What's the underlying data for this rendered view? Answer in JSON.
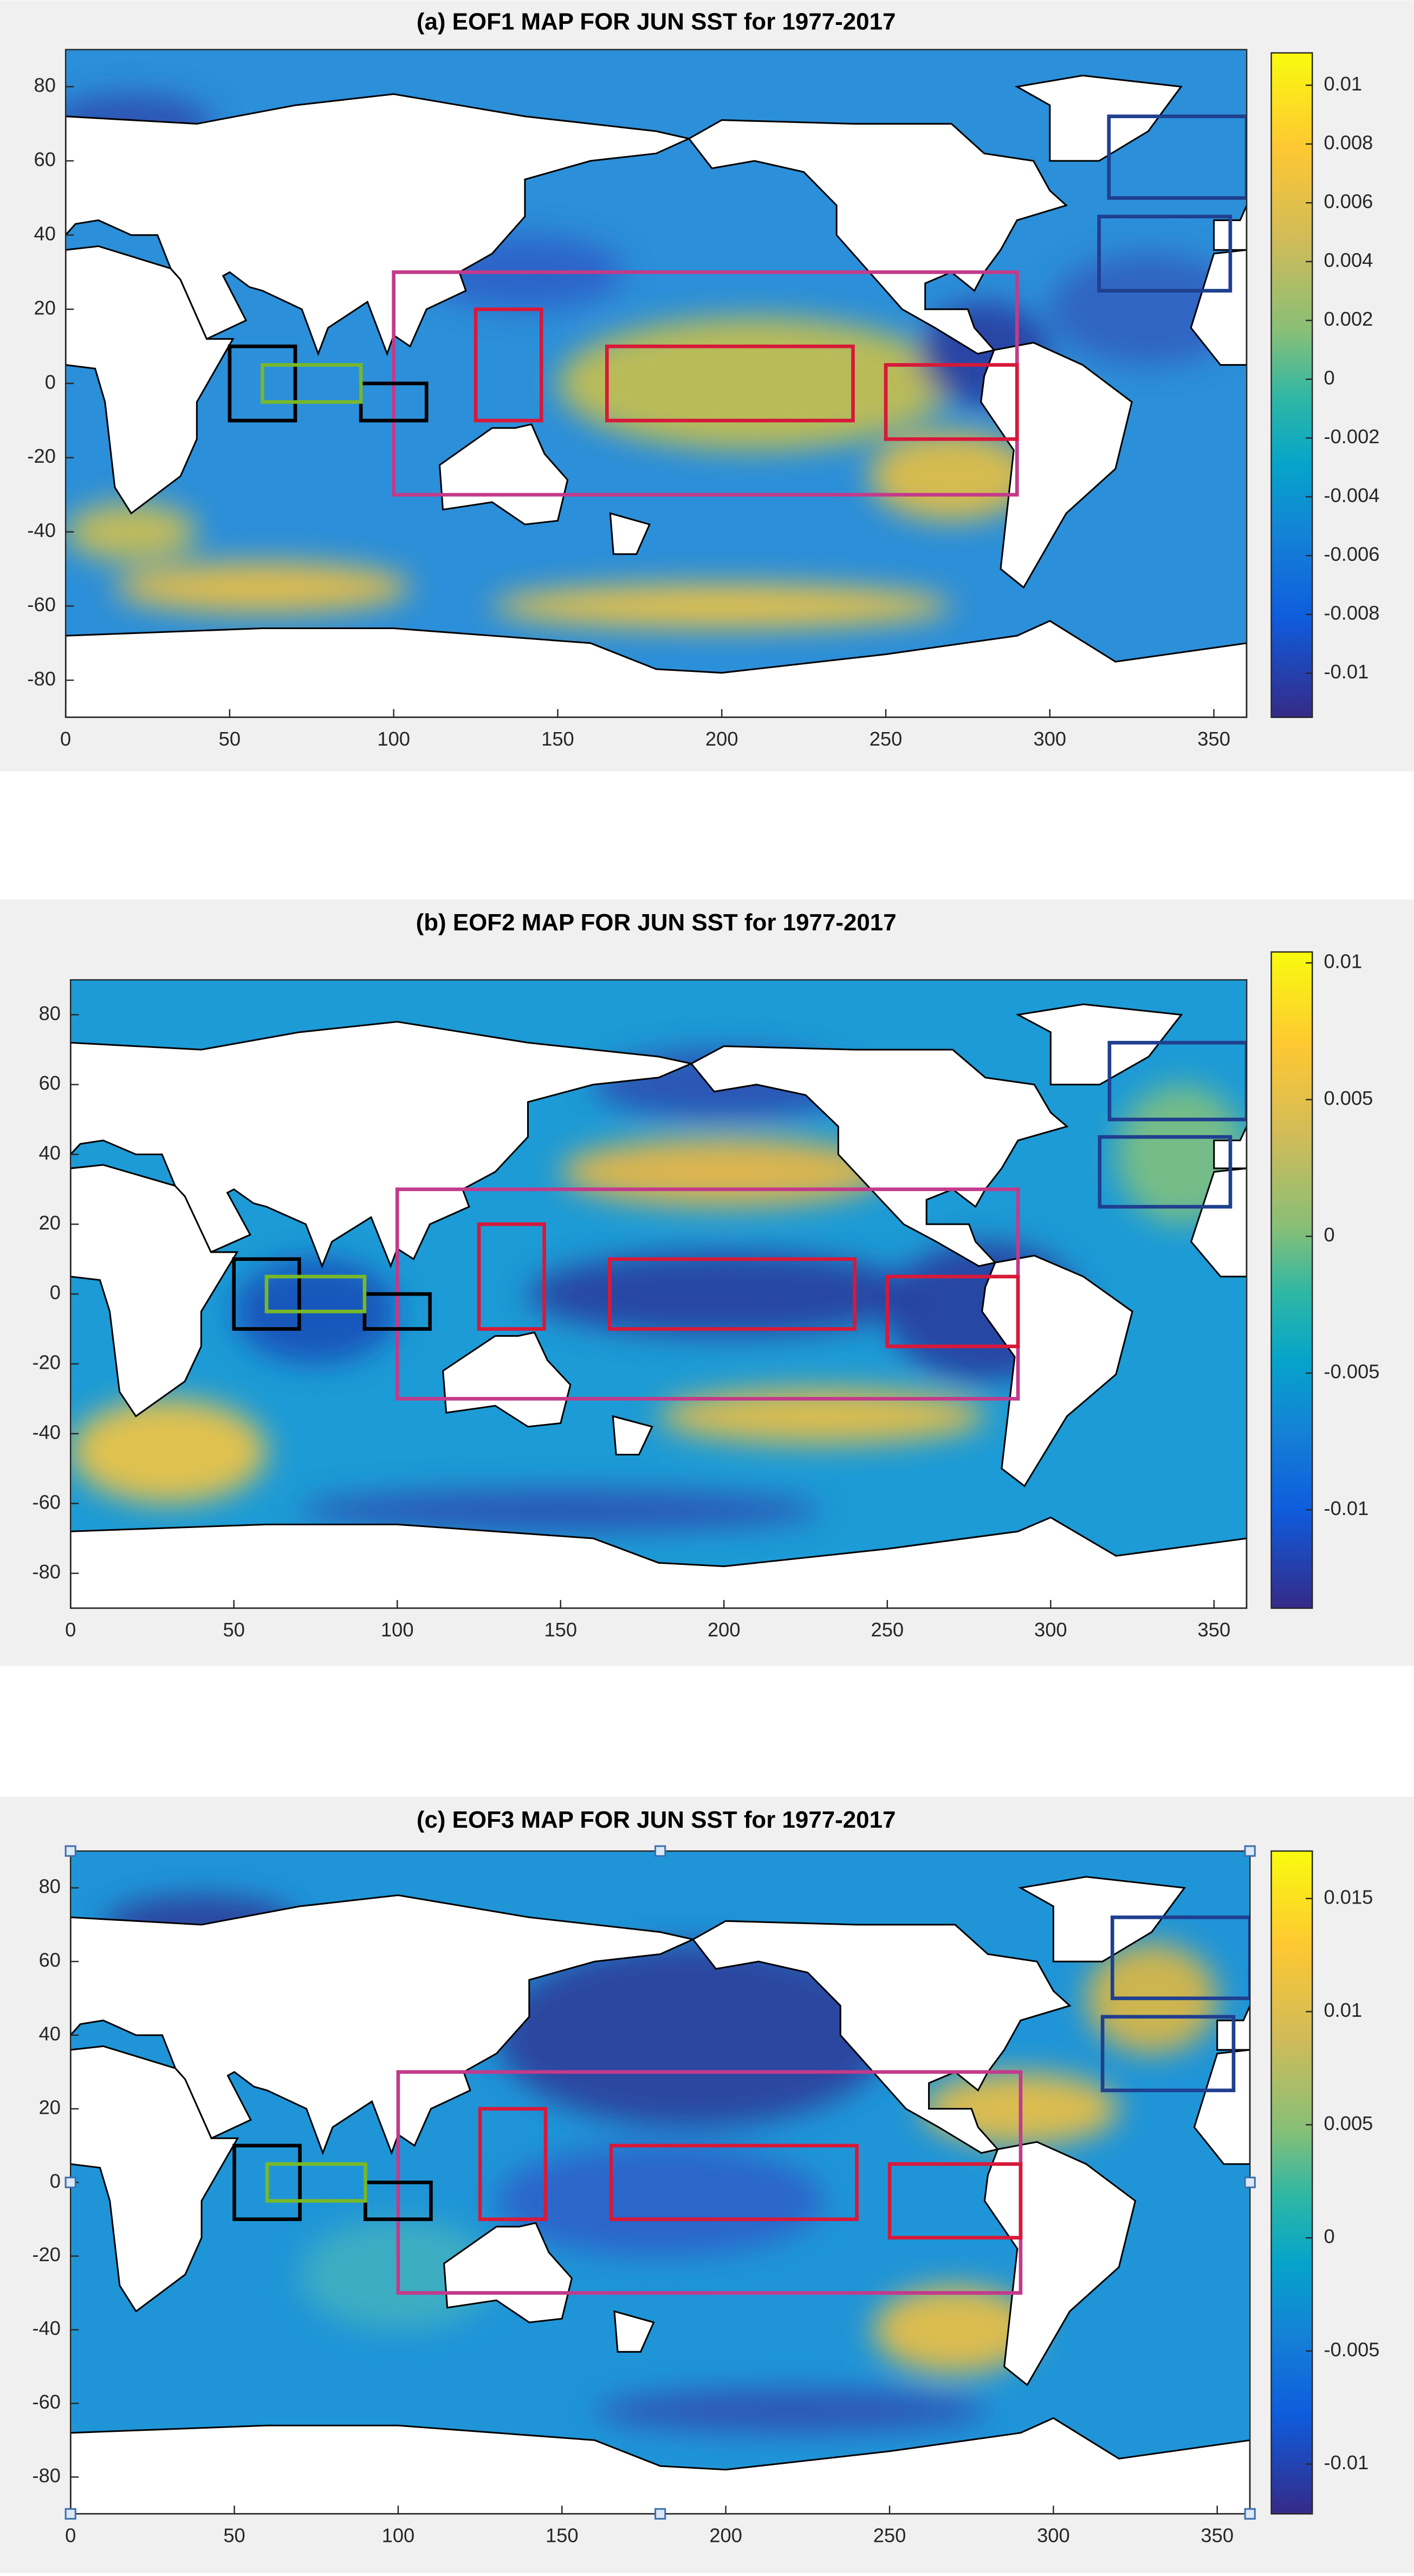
{
  "chart_data": [
    {
      "type": "map",
      "title": "(a) EOF1 MAP FOR JUN SST for 1977-2017",
      "xlim": [
        0,
        360
      ],
      "xticks": [
        0,
        50,
        100,
        150,
        200,
        250,
        300,
        350
      ],
      "ylim": [
        -90,
        90
      ],
      "yticks": [
        -80,
        -60,
        -40,
        -20,
        0,
        20,
        40,
        60,
        80
      ],
      "colorbar": {
        "clim": [
          -0.0115,
          0.0111
        ],
        "ticks": [
          -0.01,
          -0.008,
          -0.006,
          -0.004,
          -0.002,
          0,
          0.002,
          0.004,
          0.006,
          0.008,
          0.01
        ]
      },
      "boxes": [
        {
          "color": "#c23b8a",
          "lon": [
            100,
            290
          ],
          "lat": [
            -30,
            30
          ]
        },
        {
          "color": "#d7193a",
          "lon": [
            125,
            145
          ],
          "lat": [
            -10,
            20
          ]
        },
        {
          "color": "#d7193a",
          "lon": [
            165,
            240
          ],
          "lat": [
            -10,
            10
          ]
        },
        {
          "color": "#d7193a",
          "lon": [
            250,
            290
          ],
          "lat": [
            -15,
            5
          ]
        },
        {
          "color": "#000000",
          "lon": [
            50,
            70
          ],
          "lat": [
            -10,
            10
          ]
        },
        {
          "color": "#000000",
          "lon": [
            90,
            110
          ],
          "lat": [
            -10,
            0
          ]
        },
        {
          "color": "#77b82a",
          "lon": [
            60,
            90
          ],
          "lat": [
            -5,
            5
          ]
        },
        {
          "color": "#1f3f8f",
          "lon": [
            318,
            360
          ],
          "lat": [
            50,
            72
          ]
        },
        {
          "color": "#1f3f8f",
          "lon": [
            315,
            355
          ],
          "lat": [
            25,
            45
          ]
        }
      ]
    },
    {
      "type": "map",
      "title": "(b) EOF2 MAP FOR JUN SST for 1977-2017",
      "xlim": [
        0,
        360
      ],
      "xticks": [
        0,
        50,
        100,
        150,
        200,
        250,
        300,
        350
      ],
      "ylim": [
        -90,
        90
      ],
      "yticks": [
        -80,
        -60,
        -40,
        -20,
        0,
        20,
        40,
        60,
        80
      ],
      "colorbar": {
        "clim": [
          -0.0136,
          0.0104
        ],
        "ticks": [
          -0.01,
          -0.005,
          0,
          0.005,
          0.01
        ]
      },
      "boxes": [
        {
          "color": "#c23b8a",
          "lon": [
            100,
            290
          ],
          "lat": [
            -30,
            30
          ]
        },
        {
          "color": "#d7193a",
          "lon": [
            125,
            145
          ],
          "lat": [
            -10,
            20
          ]
        },
        {
          "color": "#d7193a",
          "lon": [
            165,
            240
          ],
          "lat": [
            -10,
            10
          ]
        },
        {
          "color": "#d7193a",
          "lon": [
            250,
            290
          ],
          "lat": [
            -15,
            5
          ]
        },
        {
          "color": "#000000",
          "lon": [
            50,
            70
          ],
          "lat": [
            -10,
            10
          ]
        },
        {
          "color": "#000000",
          "lon": [
            90,
            110
          ],
          "lat": [
            -10,
            0
          ]
        },
        {
          "color": "#77b82a",
          "lon": [
            60,
            90
          ],
          "lat": [
            -5,
            5
          ]
        },
        {
          "color": "#1f3f8f",
          "lon": [
            318,
            360
          ],
          "lat": [
            50,
            72
          ]
        },
        {
          "color": "#1f3f8f",
          "lon": [
            315,
            355
          ],
          "lat": [
            25,
            45
          ]
        }
      ]
    },
    {
      "type": "map",
      "title": "(c) EOF3 MAP FOR JUN SST for 1977-2017",
      "xlim": [
        0,
        360
      ],
      "xticks": [
        0,
        50,
        100,
        150,
        200,
        250,
        300,
        350
      ],
      "ylim": [
        -90,
        90
      ],
      "yticks": [
        -80,
        -60,
        -40,
        -20,
        0,
        20,
        40,
        60,
        80
      ],
      "colorbar": {
        "clim": [
          -0.0122,
          0.0171
        ],
        "ticks": [
          -0.01,
          -0.005,
          0,
          0.005,
          0.01,
          0.015
        ]
      },
      "boxes": [
        {
          "color": "#c23b8a",
          "lon": [
            100,
            290
          ],
          "lat": [
            -30,
            30
          ]
        },
        {
          "color": "#d7193a",
          "lon": [
            125,
            145
          ],
          "lat": [
            -10,
            20
          ]
        },
        {
          "color": "#d7193a",
          "lon": [
            165,
            240
          ],
          "lat": [
            -10,
            10
          ]
        },
        {
          "color": "#d7193a",
          "lon": [
            250,
            290
          ],
          "lat": [
            -15,
            5
          ]
        },
        {
          "color": "#000000",
          "lon": [
            50,
            70
          ],
          "lat": [
            -10,
            10
          ]
        },
        {
          "color": "#000000",
          "lon": [
            90,
            110
          ],
          "lat": [
            -10,
            0
          ]
        },
        {
          "color": "#77b82a",
          "lon": [
            60,
            90
          ],
          "lat": [
            -5,
            5
          ]
        },
        {
          "color": "#1f3f8f",
          "lon": [
            318,
            360
          ],
          "lat": [
            50,
            72
          ]
        },
        {
          "color": "#1f3f8f",
          "lon": [
            315,
            355
          ],
          "lat": [
            25,
            45
          ]
        }
      ]
    }
  ]
}
